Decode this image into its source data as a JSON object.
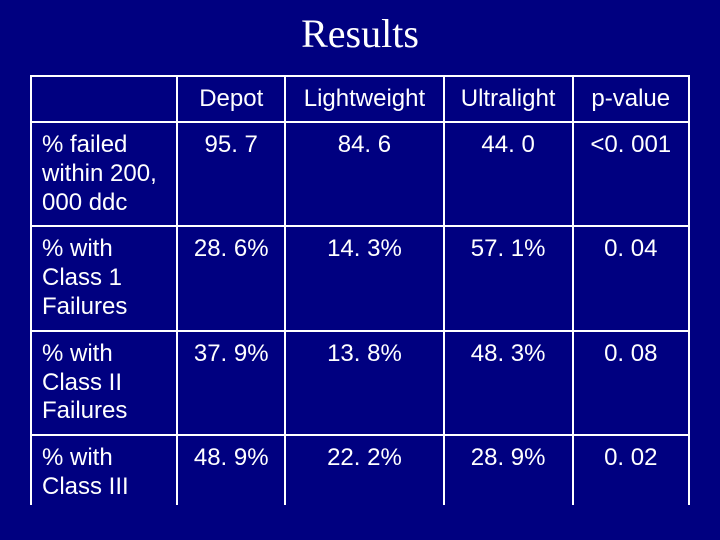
{
  "title": "Results",
  "table": {
    "headers": {
      "blank": "",
      "depot": "Depot",
      "lightweight": "Lightweight",
      "ultralight": "Ultralight",
      "pvalue": "p-value"
    },
    "rows": [
      {
        "label": "% failed within 200, 000 ddc",
        "depot": "95. 7",
        "lightweight": "84. 6",
        "ultralight": "44. 0",
        "pvalue": "<0. 001"
      },
      {
        "label": "% with Class 1 Failures",
        "depot": "28. 6%",
        "lightweight": "14. 3%",
        "ultralight": "57. 1%",
        "pvalue": "0. 04"
      },
      {
        "label": "% with Class II Failures",
        "depot": "37. 9%",
        "lightweight": "13. 8%",
        "ultralight": "48. 3%",
        "pvalue": "0. 08"
      },
      {
        "label": "% with Class III Failures",
        "depot": "48. 9%",
        "lightweight": "22. 2%",
        "ultralight": "28. 9%",
        "pvalue": "0. 02"
      }
    ]
  },
  "colors": {
    "background": "#000080",
    "text": "#ffffff",
    "border": "#ffffff"
  }
}
